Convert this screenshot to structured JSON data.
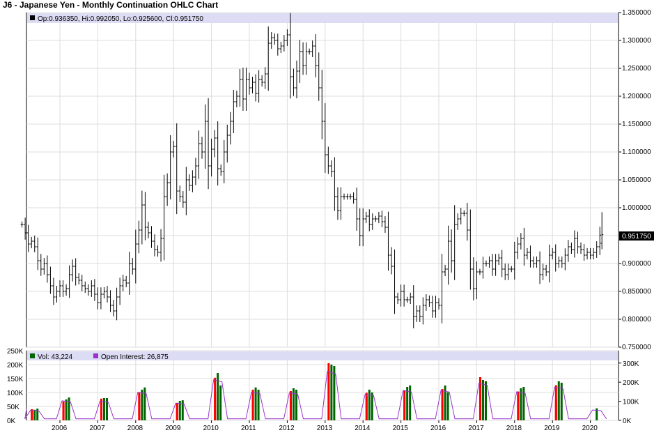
{
  "title": "J6 - Japanese Yen - Monthly Continuation OHLC Chart",
  "price_legend": "Op:0.936350, Hi:0.992050, Lo:0.925600, Cl:0.951750",
  "last_price_label": "0.951750",
  "volume_legend": {
    "vol_label": "Vol: 43,224",
    "oi_label": "Open Interest: 26,875"
  },
  "colors": {
    "background": "#ffffff",
    "grid": "#dcdcdc",
    "legend_band": "#dcdcf4",
    "price_bar": "#000000",
    "volume_up": "#006400",
    "volume_down": "#ff0000",
    "open_interest": "#9932cc"
  },
  "chart_data": [
    {
      "type": "ohlc",
      "title": "J6 - Japanese Yen - Monthly Continuation OHLC Chart",
      "ylim": [
        0.75,
        1.35
      ],
      "y_ticks": [
        "1.350000",
        "1.300000",
        "1.250000",
        "1.200000",
        "1.150000",
        "1.100000",
        "1.050000",
        "1.000000",
        "0.950000",
        "0.900000",
        "0.850000",
        "0.800000",
        "0.750000"
      ],
      "x_ticks": [
        "2006",
        "2007",
        "2008",
        "2009",
        "2010",
        "2011",
        "2012",
        "2013",
        "2014",
        "2015",
        "2016",
        "2017",
        "2018",
        "2019",
        "2020"
      ],
      "grid": true,
      "last": {
        "open": 0.93635,
        "high": 0.99205,
        "low": 0.9256,
        "close": 0.95175
      },
      "series_monthly_close_approx": [
        {
          "date": "2005-01",
          "close": 0.97
        },
        {
          "date": "2005-02",
          "close": 0.955
        },
        {
          "date": "2005-03",
          "close": 0.935
        },
        {
          "date": "2005-04",
          "close": 0.94
        },
        {
          "date": "2005-05",
          "close": 0.93
        },
        {
          "date": "2005-06",
          "close": 0.905
        },
        {
          "date": "2005-07",
          "close": 0.89
        },
        {
          "date": "2005-08",
          "close": 0.9
        },
        {
          "date": "2005-09",
          "close": 0.88
        },
        {
          "date": "2005-10",
          "close": 0.86
        },
        {
          "date": "2005-11",
          "close": 0.84
        },
        {
          "date": "2005-12",
          "close": 0.85
        },
        {
          "date": "2006-01",
          "close": 0.86
        },
        {
          "date": "2006-02",
          "close": 0.85
        },
        {
          "date": "2006-03",
          "close": 0.855
        },
        {
          "date": "2006-04",
          "close": 0.88
        },
        {
          "date": "2006-05",
          "close": 0.895
        },
        {
          "date": "2006-06",
          "close": 0.875
        },
        {
          "date": "2006-07",
          "close": 0.87
        },
        {
          "date": "2006-08",
          "close": 0.86
        },
        {
          "date": "2006-09",
          "close": 0.855
        },
        {
          "date": "2006-10",
          "close": 0.85
        },
        {
          "date": "2006-11",
          "close": 0.86
        },
        {
          "date": "2006-12",
          "close": 0.845
        },
        {
          "date": "2007-01",
          "close": 0.83
        },
        {
          "date": "2007-02",
          "close": 0.845
        },
        {
          "date": "2007-03",
          "close": 0.85
        },
        {
          "date": "2007-04",
          "close": 0.84
        },
        {
          "date": "2007-05",
          "close": 0.825
        },
        {
          "date": "2007-06",
          "close": 0.815
        },
        {
          "date": "2007-07",
          "close": 0.84
        },
        {
          "date": "2007-08",
          "close": 0.86
        },
        {
          "date": "2007-09",
          "close": 0.87
        },
        {
          "date": "2007-10",
          "close": 0.865
        },
        {
          "date": "2007-11",
          "close": 0.9
        },
        {
          "date": "2007-12",
          "close": 0.89
        },
        {
          "date": "2008-01",
          "close": 0.935
        },
        {
          "date": "2008-02",
          "close": 0.96
        },
        {
          "date": "2008-03",
          "close": 1.005
        },
        {
          "date": "2008-04",
          "close": 0.965
        },
        {
          "date": "2008-05",
          "close": 0.955
        },
        {
          "date": "2008-06",
          "close": 0.94
        },
        {
          "date": "2008-07",
          "close": 0.925
        },
        {
          "date": "2008-08",
          "close": 0.92
        },
        {
          "date": "2008-09",
          "close": 0.945
        },
        {
          "date": "2008-10",
          "close": 1.02
        },
        {
          "date": "2008-11",
          "close": 1.045
        },
        {
          "date": "2008-12",
          "close": 1.1
        },
        {
          "date": "2009-01",
          "close": 1.11
        },
        {
          "date": "2009-02",
          "close": 1.03
        },
        {
          "date": "2009-03",
          "close": 1.02
        },
        {
          "date": "2009-04",
          "close": 1.01
        },
        {
          "date": "2009-05",
          "close": 1.05
        },
        {
          "date": "2009-06",
          "close": 1.04
        },
        {
          "date": "2009-07",
          "close": 1.055
        },
        {
          "date": "2009-08",
          "close": 1.075
        },
        {
          "date": "2009-09",
          "close": 1.115
        },
        {
          "date": "2009-10",
          "close": 1.1
        },
        {
          "date": "2009-11",
          "close": 1.155
        },
        {
          "date": "2009-12",
          "close": 1.075
        },
        {
          "date": "2010-01",
          "close": 1.105
        },
        {
          "date": "2010-02",
          "close": 1.125
        },
        {
          "date": "2010-03",
          "close": 1.07
        },
        {
          "date": "2010-04",
          "close": 1.065
        },
        {
          "date": "2010-05",
          "close": 1.1
        },
        {
          "date": "2010-06",
          "close": 1.13
        },
        {
          "date": "2010-07",
          "close": 1.155
        },
        {
          "date": "2010-08",
          "close": 1.19
        },
        {
          "date": "2010-09",
          "close": 1.2
        },
        {
          "date": "2010-10",
          "close": 1.23
        },
        {
          "date": "2010-11",
          "close": 1.195
        },
        {
          "date": "2010-12",
          "close": 1.23
        },
        {
          "date": "2011-01",
          "close": 1.215
        },
        {
          "date": "2011-02",
          "close": 1.225
        },
        {
          "date": "2011-03",
          "close": 1.205
        },
        {
          "date": "2011-04",
          "close": 1.23
        },
        {
          "date": "2011-05",
          "close": 1.225
        },
        {
          "date": "2011-06",
          "close": 1.24
        },
        {
          "date": "2011-07",
          "close": 1.295
        },
        {
          "date": "2011-08",
          "close": 1.305
        },
        {
          "date": "2011-09",
          "close": 1.3
        },
        {
          "date": "2011-10",
          "close": 1.285
        },
        {
          "date": "2011-11",
          "close": 1.29
        },
        {
          "date": "2011-12",
          "close": 1.3
        },
        {
          "date": "2012-01",
          "close": 1.31
        },
        {
          "date": "2012-02",
          "close": 1.235
        },
        {
          "date": "2012-03",
          "close": 1.215
        },
        {
          "date": "2012-04",
          "close": 1.245
        },
        {
          "date": "2012-05",
          "close": 1.28
        },
        {
          "date": "2012-06",
          "close": 1.255
        },
        {
          "date": "2012-07",
          "close": 1.28
        },
        {
          "date": "2012-08",
          "close": 1.28
        },
        {
          "date": "2012-09",
          "close": 1.29
        },
        {
          "date": "2012-10",
          "close": 1.255
        },
        {
          "date": "2012-11",
          "close": 1.215
        },
        {
          "date": "2012-12",
          "close": 1.155
        },
        {
          "date": "2013-01",
          "close": 1.095
        },
        {
          "date": "2013-02",
          "close": 1.075
        },
        {
          "date": "2013-03",
          "close": 1.065
        },
        {
          "date": "2013-04",
          "close": 1.02
        },
        {
          "date": "2013-05",
          "close": 0.995
        },
        {
          "date": "2013-06",
          "close": 1.02
        },
        {
          "date": "2013-07",
          "close": 1.02
        },
        {
          "date": "2013-08",
          "close": 1.02
        },
        {
          "date": "2013-09",
          "close": 1.02
        },
        {
          "date": "2013-10",
          "close": 1.015
        },
        {
          "date": "2013-11",
          "close": 0.98
        },
        {
          "date": "2013-12",
          "close": 0.95
        },
        {
          "date": "2014-01",
          "close": 0.98
        },
        {
          "date": "2014-02",
          "close": 0.985
        },
        {
          "date": "2014-03",
          "close": 0.97
        },
        {
          "date": "2014-04",
          "close": 0.98
        },
        {
          "date": "2014-05",
          "close": 0.98
        },
        {
          "date": "2014-06",
          "close": 0.985
        },
        {
          "date": "2014-07",
          "close": 0.975
        },
        {
          "date": "2014-08",
          "close": 0.965
        },
        {
          "date": "2014-09",
          "close": 0.915
        },
        {
          "date": "2014-10",
          "close": 0.895
        },
        {
          "date": "2014-11",
          "close": 0.84
        },
        {
          "date": "2014-12",
          "close": 0.835
        },
        {
          "date": "2015-01",
          "close": 0.85
        },
        {
          "date": "2015-02",
          "close": 0.835
        },
        {
          "date": "2015-03",
          "close": 0.835
        },
        {
          "date": "2015-04",
          "close": 0.84
        },
        {
          "date": "2015-05",
          "close": 0.805
        },
        {
          "date": "2015-06",
          "close": 0.815
        },
        {
          "date": "2015-07",
          "close": 0.805
        },
        {
          "date": "2015-08",
          "close": 0.825
        },
        {
          "date": "2015-09",
          "close": 0.835
        },
        {
          "date": "2015-10",
          "close": 0.83
        },
        {
          "date": "2015-11",
          "close": 0.815
        },
        {
          "date": "2015-12",
          "close": 0.83
        },
        {
          "date": "2016-01",
          "close": 0.825
        },
        {
          "date": "2016-02",
          "close": 0.885
        },
        {
          "date": "2016-03",
          "close": 0.89
        },
        {
          "date": "2016-04",
          "close": 0.94
        },
        {
          "date": "2016-05",
          "close": 0.905
        },
        {
          "date": "2016-06",
          "close": 0.97
        },
        {
          "date": "2016-07",
          "close": 0.98
        },
        {
          "date": "2016-08",
          "close": 0.99
        },
        {
          "date": "2016-09",
          "close": 0.99
        },
        {
          "date": "2016-10",
          "close": 0.96
        },
        {
          "date": "2016-11",
          "close": 0.89
        },
        {
          "date": "2016-12",
          "close": 0.855
        },
        {
          "date": "2017-01",
          "close": 0.885
        },
        {
          "date": "2017-02",
          "close": 0.885
        },
        {
          "date": "2017-03",
          "close": 0.9
        },
        {
          "date": "2017-04",
          "close": 0.9
        },
        {
          "date": "2017-05",
          "close": 0.905
        },
        {
          "date": "2017-06",
          "close": 0.89
        },
        {
          "date": "2017-07",
          "close": 0.905
        },
        {
          "date": "2017-08",
          "close": 0.91
        },
        {
          "date": "2017-09",
          "close": 0.89
        },
        {
          "date": "2017-10",
          "close": 0.88
        },
        {
          "date": "2017-11",
          "close": 0.89
        },
        {
          "date": "2017-12",
          "close": 0.89
        },
        {
          "date": "2018-01",
          "close": 0.92
        },
        {
          "date": "2018-02",
          "close": 0.935
        },
        {
          "date": "2018-03",
          "close": 0.945
        },
        {
          "date": "2018-04",
          "close": 0.915
        },
        {
          "date": "2018-05",
          "close": 0.92
        },
        {
          "date": "2018-06",
          "close": 0.905
        },
        {
          "date": "2018-07",
          "close": 0.9
        },
        {
          "date": "2018-08",
          "close": 0.905
        },
        {
          "date": "2018-09",
          "close": 0.88
        },
        {
          "date": "2018-10",
          "close": 0.89
        },
        {
          "date": "2018-11",
          "close": 0.885
        },
        {
          "date": "2018-12",
          "close": 0.915
        },
        {
          "date": "2019-01",
          "close": 0.92
        },
        {
          "date": "2019-02",
          "close": 0.9
        },
        {
          "date": "2019-03",
          "close": 0.905
        },
        {
          "date": "2019-04",
          "close": 0.9
        },
        {
          "date": "2019-05",
          "close": 0.915
        },
        {
          "date": "2019-06",
          "close": 0.93
        },
        {
          "date": "2019-07",
          "close": 0.925
        },
        {
          "date": "2019-08",
          "close": 0.945
        },
        {
          "date": "2019-09",
          "close": 0.93
        },
        {
          "date": "2019-10",
          "close": 0.925
        },
        {
          "date": "2019-11",
          "close": 0.915
        },
        {
          "date": "2019-12",
          "close": 0.92
        },
        {
          "date": "2020-01",
          "close": 0.915
        },
        {
          "date": "2020-02",
          "close": 0.92
        },
        {
          "date": "2020-03",
          "close": 0.93
        },
        {
          "date": "2020-04",
          "close": 0.951
        }
      ]
    },
    {
      "type": "bar",
      "title": "",
      "series": [
        {
          "name": "Vol",
          "note": "monthly volume, red=down month, green=up month"
        },
        {
          "name": "Open Interest",
          "type": "line"
        }
      ],
      "volume_ylim": [
        0,
        200000
      ],
      "volume_ticks": [
        "0K",
        "50K",
        "100K",
        "150K",
        "200K",
        "250K"
      ],
      "oi_ticks": [
        "0K",
        "100K",
        "200K",
        "300K"
      ],
      "x_ticks": [
        "2006",
        "2007",
        "2008",
        "2009",
        "2010",
        "2011",
        "2012",
        "2013",
        "2014",
        "2015",
        "2016",
        "2017",
        "2018",
        "2019",
        "2020"
      ],
      "volume_clusters": [
        {
          "center": "2005-05",
          "bars": [
            40000,
            38000,
            42000
          ]
        },
        {
          "center": "2006-03",
          "bars": [
            60000,
            75000,
            82000
          ]
        },
        {
          "center": "2007-03",
          "bars": [
            78000,
            80000,
            80000
          ]
        },
        {
          "center": "2008-03",
          "bars": [
            95000,
            110000,
            118000
          ]
        },
        {
          "center": "2009-03",
          "bars": [
            60000,
            70000,
            72000
          ]
        },
        {
          "center": "2010-03",
          "bars": [
            100000,
            170000,
            125000
          ]
        },
        {
          "center": "2011-03",
          "bars": [
            110000,
            118000,
            110000
          ]
        },
        {
          "center": "2012-03",
          "bars": [
            105000,
            115000,
            110000
          ]
        },
        {
          "center": "2013-03",
          "bars": [
            205000,
            200000,
            195000
          ]
        },
        {
          "center": "2014-03",
          "bars": [
            85000,
            110000,
            100000
          ]
        },
        {
          "center": "2015-03",
          "bars": [
            85000,
            120000,
            125000
          ]
        },
        {
          "center": "2016-03",
          "bars": [
            80000,
            125000,
            100000
          ]
        },
        {
          "center": "2017-03",
          "bars": [
            155000,
            145000,
            140000
          ]
        },
        {
          "center": "2018-03",
          "bars": [
            90000,
            115000,
            120000
          ]
        },
        {
          "center": "2019-03",
          "bars": [
            75000,
            140000,
            135000
          ]
        },
        {
          "center": "2020-03",
          "bars": [
            43224
          ]
        }
      ],
      "last": {
        "volume": 43224,
        "open_interest": 26875
      }
    }
  ]
}
